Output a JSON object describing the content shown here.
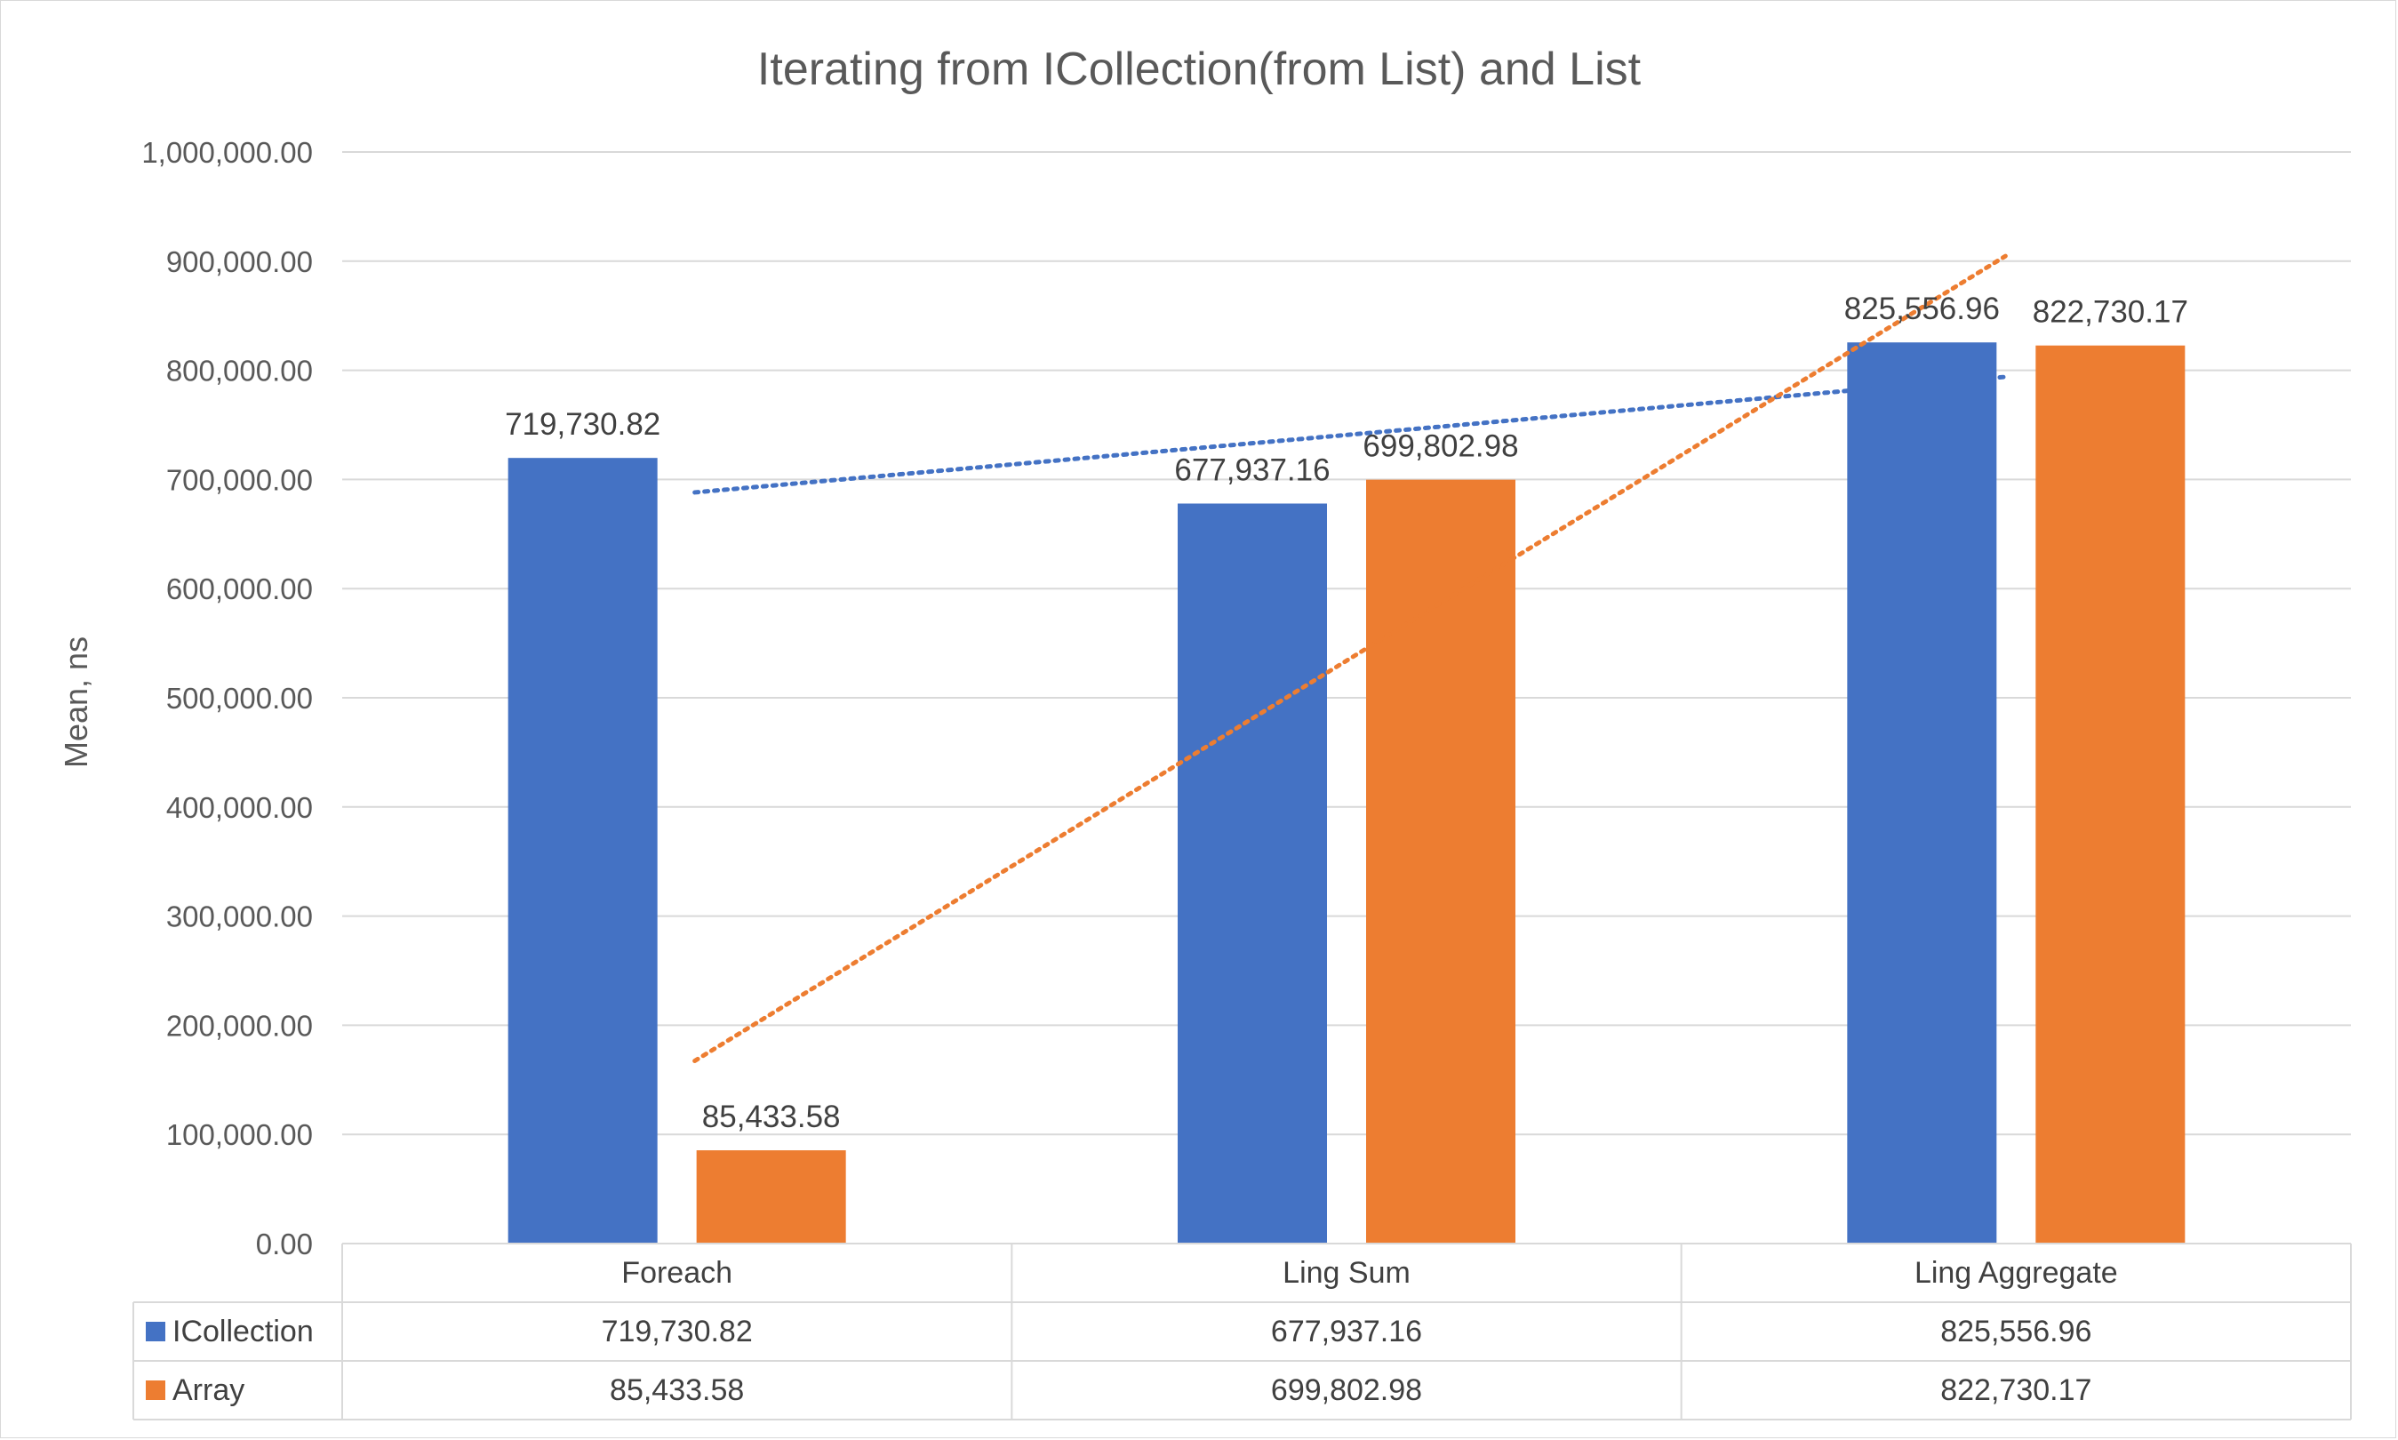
{
  "chart_data": {
    "type": "bar",
    "title": "Iterating from ICollection(from List) and List",
    "ylabel": "Mean, ns",
    "xlabel": "",
    "categories": [
      "Foreach",
      "Ling Sum",
      "Ling Aggregate"
    ],
    "series": [
      {
        "name": "ICollection",
        "color": "#4472c4",
        "values": [
          719730.82,
          677937.16,
          825556.96
        ],
        "labels": [
          "719,730.82",
          "677,937.16",
          "825,556.96"
        ]
      },
      {
        "name": "Array",
        "color": "#ed7d31",
        "values": [
          85433.58,
          699802.98,
          822730.17
        ],
        "labels": [
          "85,433.58",
          "699,802.98",
          "822,730.17"
        ]
      }
    ],
    "ylim": [
      0,
      1000000
    ],
    "yticks": [
      0,
      100000,
      200000,
      300000,
      400000,
      500000,
      600000,
      700000,
      800000,
      900000,
      1000000
    ],
    "ytick_labels": [
      "0.00",
      "100,000.00",
      "200,000.00",
      "300,000.00",
      "400,000.00",
      "500,000.00",
      "600,000.00",
      "700,000.00",
      "800,000.00",
      "900,000.00",
      "1,000,000.00"
    ],
    "grid": true,
    "trendlines": "linear, dotted, one per series",
    "legend": "data table below chart"
  }
}
